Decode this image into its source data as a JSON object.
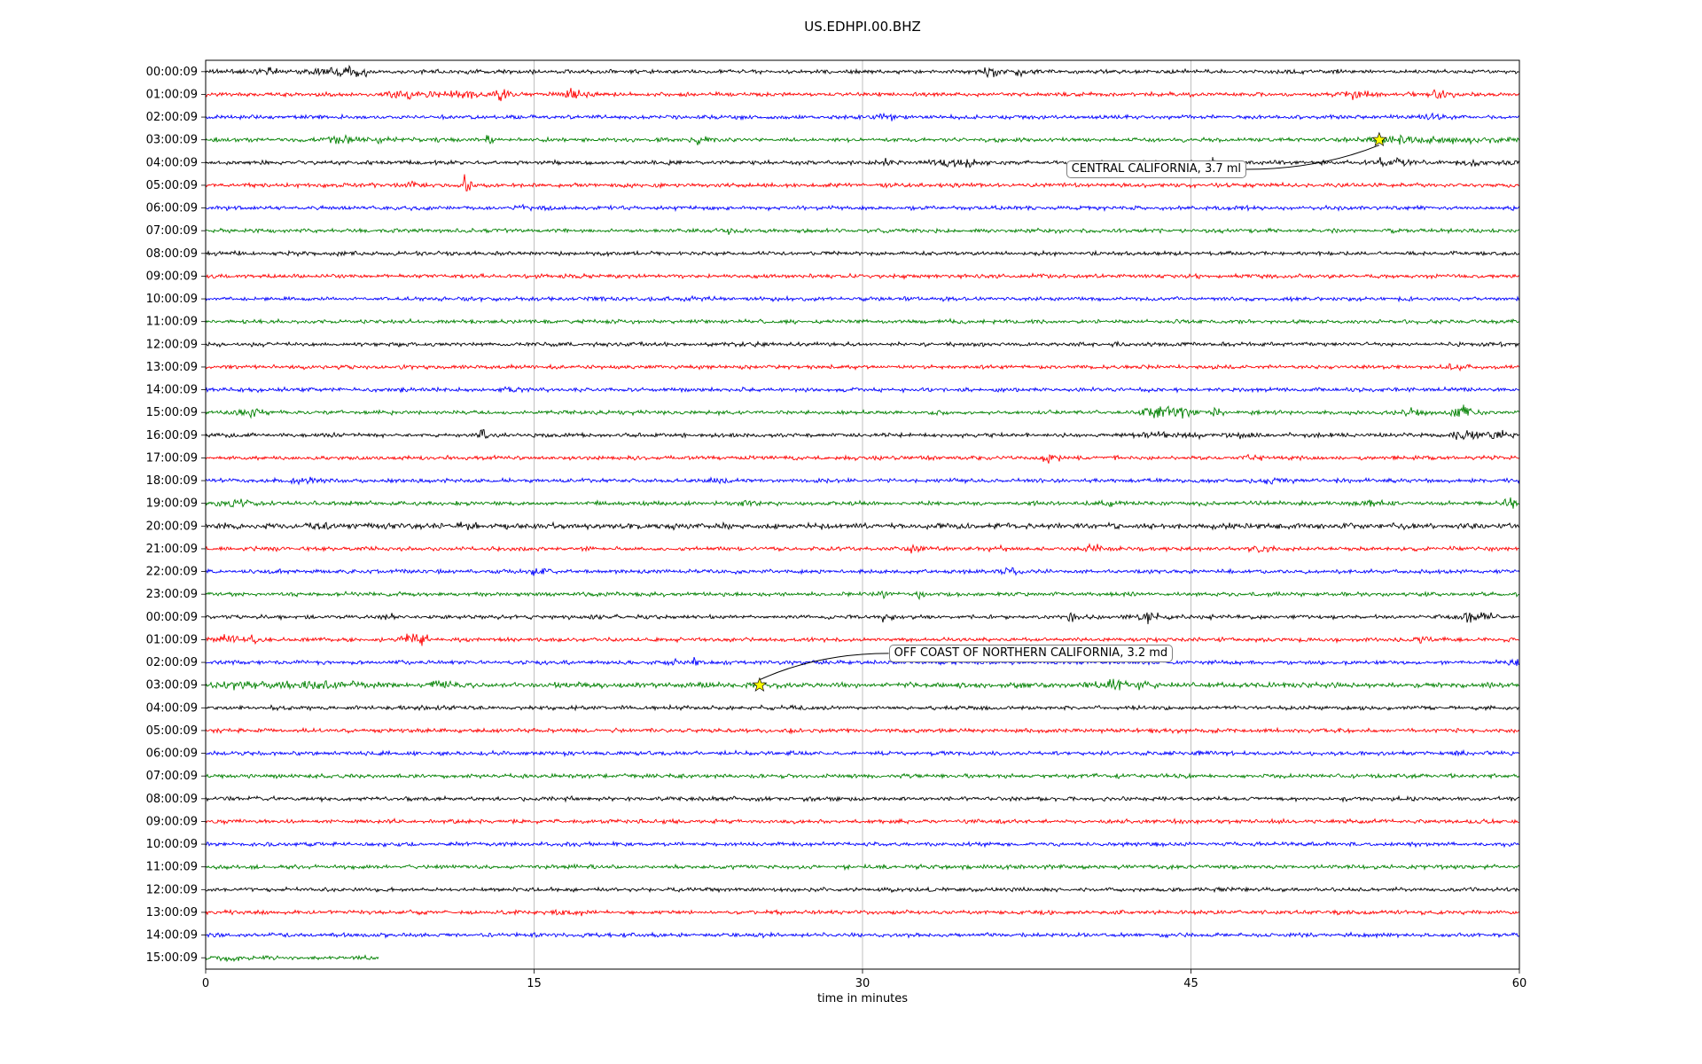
{
  "title": "US.EDHPI.00.BHZ",
  "chart_data": {
    "type": "line",
    "subtype": "seismogram-helicorder-dayplot",
    "title": "US.EDHPI.00.BHZ",
    "xlabel": "time in minutes",
    "xlim": [
      0,
      60
    ],
    "x_ticks": [
      "0",
      "15",
      "30",
      "45",
      "60"
    ],
    "x_tick_minutes": [
      0,
      15,
      30,
      45,
      60
    ],
    "grid_minutes": [
      15,
      30,
      45
    ],
    "grid_color": "#b0b0b0",
    "palette": {
      "k": "#000000",
      "r": "#ff0000",
      "b": "#0000ff",
      "g": "#008000"
    },
    "marker": {
      "shape": "star",
      "fill": "#ffff00",
      "edge": "#000000"
    },
    "rows": [
      {
        "label": "00:00:09",
        "color": "k",
        "events": [
          {
            "t": 3,
            "a": 2.5,
            "w": 0.4
          },
          {
            "t": 5.6,
            "a": 3.5,
            "w": 0.5
          },
          {
            "t": 6.6,
            "a": 3,
            "w": 0.4
          },
          {
            "t": 7.3,
            "a": 2.5,
            "w": 0.3
          },
          {
            "t": 35.8,
            "a": 3.5,
            "w": 0.35
          },
          {
            "t": 37,
            "a": 3,
            "w": 0.3
          }
        ]
      },
      {
        "label": "01:00:09",
        "color": "r",
        "events": [
          {
            "t": 9,
            "a": 3,
            "w": 0.5
          },
          {
            "t": 10.5,
            "a": 2.5,
            "w": 0.5
          },
          {
            "t": 12,
            "a": 3,
            "w": 0.4
          },
          {
            "t": 13.6,
            "a": 8,
            "w": 0.25
          },
          {
            "t": 16.8,
            "a": 4.5,
            "w": 0.3
          },
          {
            "t": 52.5,
            "a": 3,
            "w": 0.5
          },
          {
            "t": 56.3,
            "a": 2,
            "w": 0.4
          }
        ]
      },
      {
        "label": "02:00:09",
        "color": "b",
        "events": [
          {
            "t": 31.2,
            "a": 1.8,
            "w": 0.5
          },
          {
            "t": 56,
            "a": 2.2,
            "w": 0.4
          }
        ]
      },
      {
        "label": "03:00:09",
        "color": "g",
        "events": [
          {
            "t": 6.5,
            "a": 2.5,
            "w": 0.6
          },
          {
            "t": 8,
            "a": 2,
            "w": 0.4
          },
          {
            "t": 13,
            "a": 3.5,
            "w": 0.2
          },
          {
            "t": 22.6,
            "a": 3.5,
            "w": 0.3
          },
          {
            "t": 54.5,
            "a": 2,
            "w": 1.5
          },
          {
            "t": 57.5,
            "a": 1.8,
            "w": 1.2
          }
        ]
      },
      {
        "label": "04:00:09",
        "color": "k",
        "events": [
          {
            "t": 31.2,
            "a": 2.5,
            "w": 0.3
          },
          {
            "t": 33.6,
            "a": 4,
            "w": 0.45
          },
          {
            "t": 34.8,
            "a": 3.5,
            "w": 0.35
          },
          {
            "t": 46,
            "a": 9,
            "w": 0.1
          },
          {
            "t": 53.8,
            "a": 4.5,
            "w": 0.35
          },
          {
            "t": 54.6,
            "a": 3,
            "w": 0.3
          },
          {
            "t": 57.7,
            "a": 3.5,
            "w": 0.3
          }
        ]
      },
      {
        "label": "05:00:09",
        "color": "r",
        "events": [
          {
            "t": 11.9,
            "a": 13,
            "w": 0.15
          },
          {
            "t": 9.6,
            "a": 2,
            "w": 0.4
          }
        ]
      },
      {
        "label": "06:00:09",
        "color": "b",
        "events": [
          {
            "t": 14.5,
            "a": 1.2,
            "w": 0.5
          }
        ]
      },
      {
        "label": "07:00:09",
        "color": "g",
        "events": [
          {
            "t": 24,
            "a": 1.8,
            "w": 0.3
          }
        ]
      },
      {
        "label": "08:00:09",
        "color": "k",
        "events": []
      },
      {
        "label": "09:00:09",
        "color": "r",
        "events": []
      },
      {
        "label": "10:00:09",
        "color": "b",
        "events": [
          {
            "t": 22,
            "a": 1,
            "w": 0.8
          }
        ]
      },
      {
        "label": "11:00:09",
        "color": "g",
        "events": []
      },
      {
        "label": "12:00:09",
        "color": "k",
        "events": []
      },
      {
        "label": "13:00:09",
        "color": "r",
        "events": [
          {
            "t": 57,
            "a": 3,
            "w": 0.4
          }
        ]
      },
      {
        "label": "14:00:09",
        "color": "b",
        "events": [
          {
            "t": 14,
            "a": 1.5,
            "w": 0.4
          }
        ]
      },
      {
        "label": "15:00:09",
        "color": "g",
        "events": [
          {
            "t": 2,
            "a": 2.5,
            "w": 0.4
          },
          {
            "t": 43.5,
            "a": 5.5,
            "w": 0.45
          },
          {
            "t": 44.6,
            "a": 4,
            "w": 0.35
          },
          {
            "t": 46.2,
            "a": 2.5,
            "w": 0.3
          },
          {
            "t": 55.2,
            "a": 3.5,
            "w": 0.35
          },
          {
            "t": 57.3,
            "a": 5.5,
            "w": 0.4
          }
        ]
      },
      {
        "label": "16:00:09",
        "color": "k",
        "events": [
          {
            "t": 12.7,
            "a": 6,
            "w": 0.12
          },
          {
            "t": 43.2,
            "a": 2.5,
            "w": 0.4
          },
          {
            "t": 45,
            "a": 2.5,
            "w": 0.3
          },
          {
            "t": 47.5,
            "a": 4,
            "w": 0.3
          },
          {
            "t": 57.5,
            "a": 3,
            "w": 0.4
          },
          {
            "t": 59,
            "a": 3,
            "w": 0.4
          }
        ]
      },
      {
        "label": "17:00:09",
        "color": "r",
        "events": [
          {
            "t": 38.5,
            "a": 2.5,
            "w": 0.4
          },
          {
            "t": 47.7,
            "a": 1.8,
            "w": 0.4
          }
        ]
      },
      {
        "label": "18:00:09",
        "color": "b",
        "events": [
          {
            "t": 4.5,
            "a": 2.5,
            "w": 0.4
          },
          {
            "t": 23.5,
            "a": 2.5,
            "w": 0.4
          },
          {
            "t": 48.9,
            "a": 2,
            "w": 0.5
          }
        ]
      },
      {
        "label": "19:00:09",
        "color": "g",
        "events": [
          {
            "t": 1.5,
            "a": 2.5,
            "w": 0.7
          },
          {
            "t": 24.6,
            "a": 3,
            "w": 0.3
          },
          {
            "t": 41.2,
            "a": 2.5,
            "w": 0.4
          },
          {
            "t": 53.5,
            "a": 2.8,
            "w": 0.4
          },
          {
            "t": 59.7,
            "a": 7,
            "w": 0.2
          }
        ]
      },
      {
        "label": "20:00:09",
        "color": "k",
        "base": 2.9,
        "events": [
          {
            "t": 5.4,
            "a": 3.5,
            "w": 0.3
          },
          {
            "t": 12,
            "a": 2.5,
            "w": 0.4
          }
        ]
      },
      {
        "label": "21:00:09",
        "color": "r",
        "events": [
          {
            "t": 32.3,
            "a": 2.8,
            "w": 0.3
          },
          {
            "t": 35.9,
            "a": 3.5,
            "w": 0.3
          },
          {
            "t": 40.6,
            "a": 3,
            "w": 0.3
          },
          {
            "t": 48.2,
            "a": 2.8,
            "w": 0.3
          }
        ]
      },
      {
        "label": "22:00:09",
        "color": "b",
        "events": [
          {
            "t": 15.2,
            "a": 3,
            "w": 0.3
          },
          {
            "t": 36.6,
            "a": 3.8,
            "w": 0.3
          }
        ]
      },
      {
        "label": "23:00:09",
        "color": "g",
        "events": [
          {
            "t": 32.6,
            "a": 5.5,
            "w": 0.15
          },
          {
            "t": 31,
            "a": 1.8,
            "w": 0.3
          }
        ]
      },
      {
        "label": "00:00:09",
        "color": "k",
        "events": [
          {
            "t": 8.5,
            "a": 6.5,
            "w": 0.12
          },
          {
            "t": 31.1,
            "a": 3.5,
            "w": 0.2
          },
          {
            "t": 39.5,
            "a": 5.5,
            "w": 0.12
          },
          {
            "t": 43,
            "a": 4.5,
            "w": 0.3
          },
          {
            "t": 43.8,
            "a": 3.5,
            "w": 0.25
          },
          {
            "t": 58.3,
            "a": 7,
            "w": 0.25
          },
          {
            "t": 57.6,
            "a": 3.5,
            "w": 0.3
          }
        ]
      },
      {
        "label": "01:00:09",
        "color": "r",
        "events": [
          {
            "t": 0.8,
            "a": 2.8,
            "w": 0.4
          },
          {
            "t": 2,
            "a": 2.5,
            "w": 0.4
          },
          {
            "t": 9.8,
            "a": 7,
            "w": 0.3
          },
          {
            "t": 9,
            "a": 3.5,
            "w": 0.25
          },
          {
            "t": 55.5,
            "a": 2.8,
            "w": 0.3
          }
        ]
      },
      {
        "label": "02:00:09",
        "color": "b",
        "events": [
          {
            "t": 21.2,
            "a": 2.8,
            "w": 0.3
          },
          {
            "t": 22.3,
            "a": 2.8,
            "w": 0.3
          },
          {
            "t": 59.8,
            "a": 6,
            "w": 0.15
          }
        ]
      },
      {
        "label": "03:00:09",
        "color": "g",
        "base": 2.7,
        "events": [
          {
            "t": 1,
            "a": 2.5,
            "w": 0.9
          },
          {
            "t": 3.5,
            "a": 2,
            "w": 1
          },
          {
            "t": 6,
            "a": 2,
            "w": 0.8
          },
          {
            "t": 10.7,
            "a": 2.5,
            "w": 0.3
          },
          {
            "t": 41.5,
            "a": 3.5,
            "w": 0.5
          },
          {
            "t": 42.6,
            "a": 2.8,
            "w": 0.4
          }
        ]
      },
      {
        "label": "04:00:09",
        "color": "k",
        "events": []
      },
      {
        "label": "05:00:09",
        "color": "r",
        "events": []
      },
      {
        "label": "06:00:09",
        "color": "b",
        "events": []
      },
      {
        "label": "07:00:09",
        "color": "g",
        "events": []
      },
      {
        "label": "08:00:09",
        "color": "k",
        "events": []
      },
      {
        "label": "09:00:09",
        "color": "r",
        "events": []
      },
      {
        "label": "10:00:09",
        "color": "b",
        "events": []
      },
      {
        "label": "11:00:09",
        "color": "g",
        "events": []
      },
      {
        "label": "12:00:09",
        "color": "k",
        "events": []
      },
      {
        "label": "13:00:09",
        "color": "r",
        "events": [
          {
            "t": 16.5,
            "a": 1.8,
            "w": 0.5
          }
        ]
      },
      {
        "label": "14:00:09",
        "color": "b",
        "events": []
      },
      {
        "label": "15:00:09",
        "color": "g",
        "duration": 7.9,
        "events": [
          {
            "t": 1.2,
            "a": 1.5,
            "w": 0.5
          }
        ]
      }
    ],
    "annotations": [
      {
        "text": "CENTRAL CALIFORNIA, 3.7 ml",
        "star_row": 3,
        "star_minute": 53.6,
        "label_row": 4.3,
        "label_minute": 39.3
      },
      {
        "text": "OFF COAST OF NORTHERN CALIFORNIA, 3.2 md",
        "star_row": 27,
        "star_minute": 25.3,
        "label_row": 25.6,
        "label_minute": 31.2
      }
    ]
  }
}
